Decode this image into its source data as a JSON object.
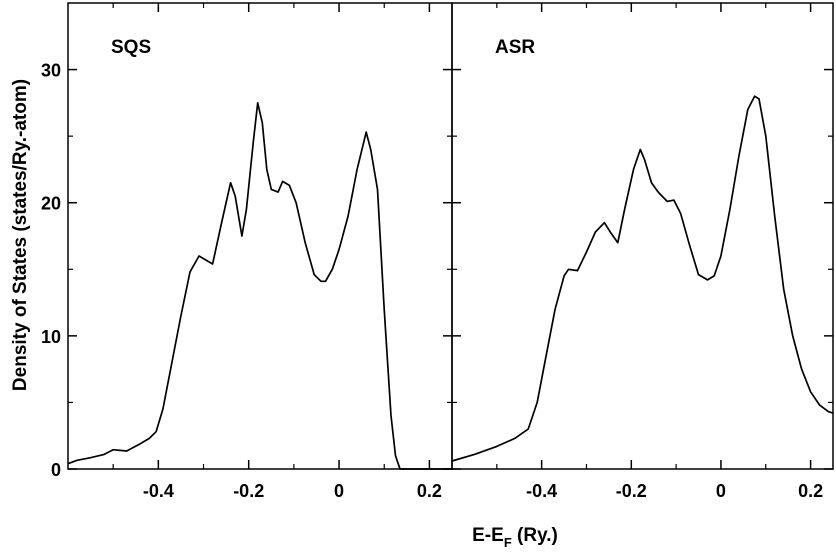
{
  "chart_data": {
    "type": "line",
    "xlabel": "E-E",
    "xlabel_subscript": "F",
    "xlabel_suffix": " (Ry.)",
    "ylabel": "Density of States (states/Ry.-atom)",
    "ylim": [
      0,
      35
    ],
    "y_ticks": [
      0,
      10,
      20,
      30
    ],
    "grid": false,
    "panels": [
      {
        "label": "SQS",
        "xlim": [
          -0.6,
          0.25
        ],
        "x_ticks": [
          "-0.4",
          "-0.2",
          "0",
          "0.2"
        ],
        "x_tick_values": [
          -0.4,
          -0.2,
          0,
          0.2
        ],
        "series": [
          {
            "color": "#000000",
            "points": [
              [
                -0.6,
                0.4
              ],
              [
                -0.58,
                0.65
              ],
              [
                -0.55,
                0.85
              ],
              [
                -0.52,
                1.1
              ],
              [
                -0.5,
                1.45
              ],
              [
                -0.47,
                1.35
              ],
              [
                -0.44,
                1.9
              ],
              [
                -0.42,
                2.3
              ],
              [
                -0.405,
                2.8
              ],
              [
                -0.39,
                4.5
              ],
              [
                -0.37,
                8.0
              ],
              [
                -0.35,
                11.5
              ],
              [
                -0.33,
                14.8
              ],
              [
                -0.31,
                16.0
              ],
              [
                -0.3,
                15.8
              ],
              [
                -0.28,
                15.4
              ],
              [
                -0.26,
                18.5
              ],
              [
                -0.24,
                21.5
              ],
              [
                -0.23,
                20.5
              ],
              [
                -0.215,
                17.5
              ],
              [
                -0.205,
                19.5
              ],
              [
                -0.19,
                24.5
              ],
              [
                -0.18,
                27.5
              ],
              [
                -0.17,
                26.0
              ],
              [
                -0.16,
                22.5
              ],
              [
                -0.15,
                21.0
              ],
              [
                -0.135,
                20.8
              ],
              [
                -0.125,
                21.6
              ],
              [
                -0.11,
                21.3
              ],
              [
                -0.095,
                20.0
              ],
              [
                -0.075,
                17.0
              ],
              [
                -0.055,
                14.6
              ],
              [
                -0.04,
                14.1
              ],
              [
                -0.03,
                14.1
              ],
              [
                -0.015,
                15.0
              ],
              [
                0.0,
                16.5
              ],
              [
                0.02,
                19.0
              ],
              [
                0.04,
                22.5
              ],
              [
                0.06,
                25.3
              ],
              [
                0.07,
                24.0
              ],
              [
                0.085,
                21.0
              ],
              [
                0.1,
                12.0
              ],
              [
                0.115,
                4.0
              ],
              [
                0.125,
                1.0
              ],
              [
                0.135,
                0.0
              ],
              [
                0.25,
                0.0
              ]
            ]
          }
        ]
      },
      {
        "label": "ASR",
        "xlim": [
          -0.6,
          0.25
        ],
        "x_ticks": [
          "-0.4",
          "-0.2",
          "0",
          "0.2"
        ],
        "x_tick_values": [
          -0.4,
          -0.2,
          0,
          0.2
        ],
        "series": [
          {
            "color": "#000000",
            "points": [
              [
                -0.6,
                0.6
              ],
              [
                -0.55,
                1.1
              ],
              [
                -0.5,
                1.7
              ],
              [
                -0.46,
                2.3
              ],
              [
                -0.43,
                3.0
              ],
              [
                -0.41,
                5.0
              ],
              [
                -0.39,
                8.5
              ],
              [
                -0.37,
                12.0
              ],
              [
                -0.35,
                14.5
              ],
              [
                -0.34,
                15.0
              ],
              [
                -0.32,
                14.9
              ],
              [
                -0.3,
                16.3
              ],
              [
                -0.28,
                17.8
              ],
              [
                -0.26,
                18.5
              ],
              [
                -0.245,
                17.7
              ],
              [
                -0.23,
                17.0
              ],
              [
                -0.215,
                19.5
              ],
              [
                -0.195,
                22.5
              ],
              [
                -0.18,
                24.0
              ],
              [
                -0.17,
                23.2
              ],
              [
                -0.155,
                21.5
              ],
              [
                -0.14,
                20.8
              ],
              [
                -0.12,
                20.1
              ],
              [
                -0.105,
                20.2
              ],
              [
                -0.09,
                19.2
              ],
              [
                -0.07,
                16.8
              ],
              [
                -0.05,
                14.6
              ],
              [
                -0.03,
                14.2
              ],
              [
                -0.015,
                14.5
              ],
              [
                0.0,
                16.0
              ],
              [
                0.02,
                19.5
              ],
              [
                0.04,
                23.5
              ],
              [
                0.06,
                27.0
              ],
              [
                0.075,
                28.0
              ],
              [
                0.085,
                27.8
              ],
              [
                0.1,
                25.0
              ],
              [
                0.12,
                19.0
              ],
              [
                0.14,
                13.5
              ],
              [
                0.16,
                10.0
              ],
              [
                0.18,
                7.5
              ],
              [
                0.2,
                5.8
              ],
              [
                0.22,
                4.8
              ],
              [
                0.24,
                4.3
              ],
              [
                0.25,
                4.2
              ]
            ]
          }
        ]
      }
    ]
  }
}
